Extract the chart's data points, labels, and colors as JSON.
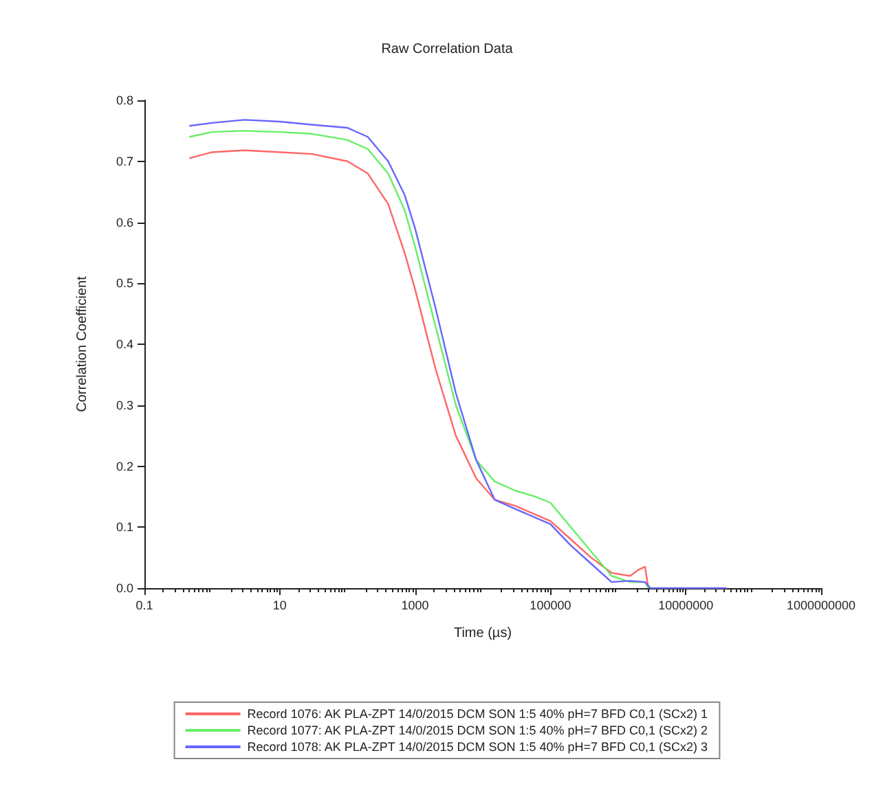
{
  "chart_data": {
    "type": "line",
    "title": "Raw Correlation Data",
    "xlabel": "Time (µs)",
    "ylabel": "Correlation Coefficient",
    "log": "x",
    "xlim": [
      0.1,
      1000000000
    ],
    "xticks": [
      0.1,
      10,
      1000,
      100000,
      10000000,
      1000000000
    ],
    "ylim": [
      0,
      0.8
    ],
    "yticks": [
      {
        "value": 0,
        "label": "0.0"
      },
      0.1,
      0.2,
      0.3,
      0.4,
      0.5,
      0.6,
      0.7,
      0.8
    ],
    "grid": false,
    "legend": "bottom",
    "marker": "none",
    "line_style": "solid",
    "series": [
      {
        "name": "Record 1076: AK PLA-ZPT 14/0/2015 DCM SON 1:5 40% pH=7 BFD C0,1 (SCx2) 1",
        "color": "#ff6666",
        "x": [
          0.46,
          1,
          3,
          10,
          30,
          100,
          200,
          400,
          700,
          1000,
          2000,
          4000,
          8000,
          15000,
          30000,
          100000,
          200000,
          400000,
          800000,
          1500000,
          2000000,
          2500000,
          2800000
        ],
        "values": [
          0.705,
          0.715,
          0.718,
          0.715,
          0.712,
          0.7,
          0.68,
          0.63,
          0.55,
          0.49,
          0.36,
          0.25,
          0.18,
          0.145,
          0.135,
          0.11,
          0.08,
          0.05,
          0.025,
          0.02,
          0.03,
          0.035,
          0
        ]
      },
      {
        "name": "Record 1077: AK PLA-ZPT 14/0/2015 DCM SON 1:5 40% pH=7 BFD C0,1 (SCx2) 2",
        "color": "#66ee66",
        "x": [
          0.46,
          1,
          3,
          10,
          30,
          100,
          200,
          400,
          700,
          1000,
          2000,
          4000,
          8000,
          15000,
          30000,
          60000,
          100000,
          200000,
          400000,
          800000,
          1500000,
          2500000,
          2800000
        ],
        "values": [
          0.74,
          0.748,
          0.75,
          0.748,
          0.745,
          0.735,
          0.72,
          0.68,
          0.62,
          0.56,
          0.43,
          0.3,
          0.21,
          0.175,
          0.16,
          0.15,
          0.14,
          0.1,
          0.06,
          0.02,
          0.01,
          0.01,
          0
        ]
      },
      {
        "name": "Record 1078: AK PLA-ZPT 14/0/2015 DCM SON 1:5 40% pH=7 BFD C0,1 (SCx2) 3",
        "color": "#6666ff",
        "x": [
          0.46,
          1,
          3,
          10,
          30,
          100,
          200,
          400,
          700,
          1000,
          2000,
          4000,
          8000,
          15000,
          30000,
          100000,
          200000,
          400000,
          800000,
          1500000,
          2500000,
          3000000,
          10000000,
          40000000
        ],
        "values": [
          0.758,
          0.763,
          0.768,
          0.765,
          0.76,
          0.755,
          0.74,
          0.7,
          0.645,
          0.59,
          0.46,
          0.32,
          0.21,
          0.145,
          0.13,
          0.105,
          0.07,
          0.04,
          0.01,
          0.012,
          0.01,
          0,
          0,
          0
        ]
      }
    ]
  }
}
